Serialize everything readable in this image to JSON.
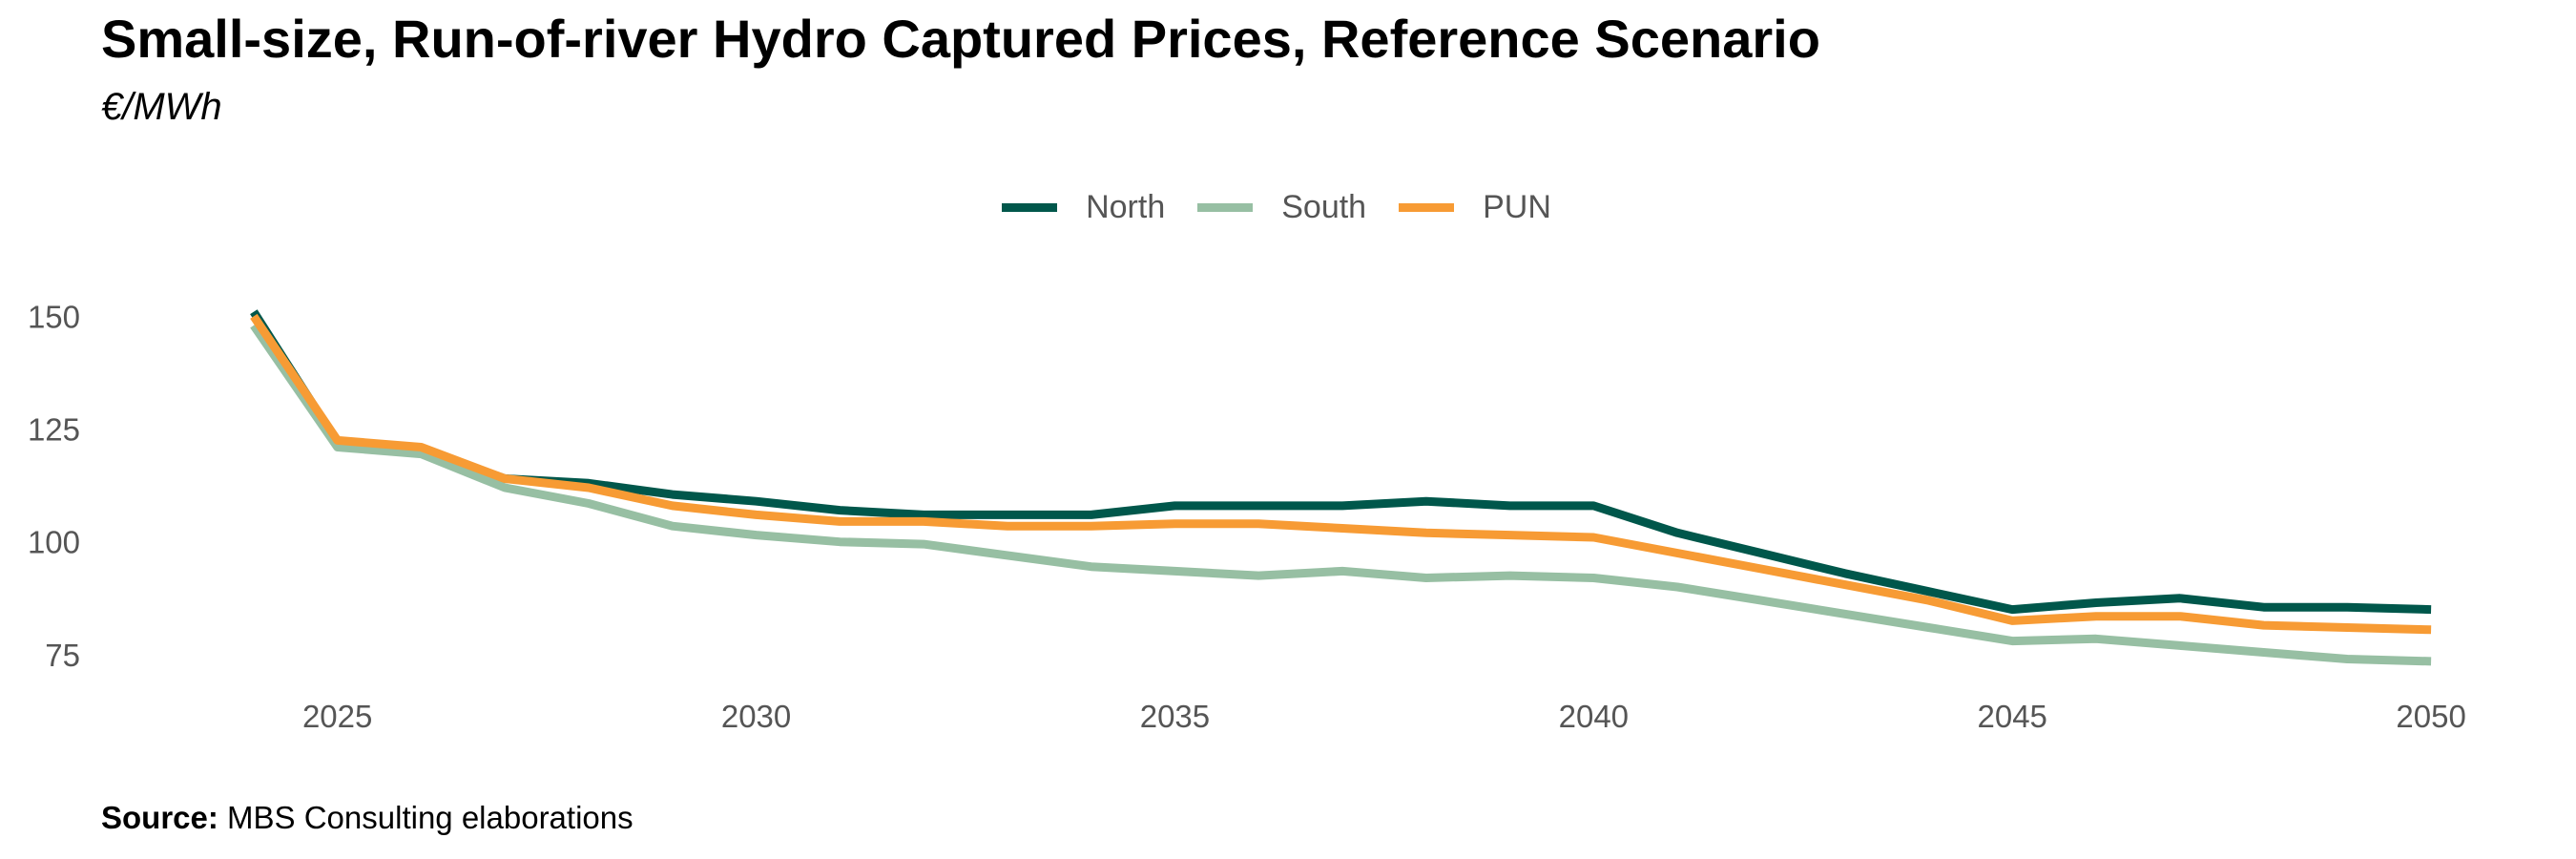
{
  "chart_data": {
    "type": "line",
    "title": "Small-size, Run-of-river Hydro Captured Prices, Reference Scenario",
    "subtitle": "€/MWh",
    "xlabel": "",
    "ylabel": "",
    "x": [
      2024,
      2025,
      2026,
      2027,
      2028,
      2029,
      2030,
      2031,
      2032,
      2033,
      2034,
      2035,
      2036,
      2037,
      2038,
      2039,
      2040,
      2041,
      2042,
      2043,
      2044,
      2045,
      2046,
      2047,
      2048,
      2049,
      2050
    ],
    "xticks": [
      "2025",
      "2030",
      "2035",
      "2040",
      "2045",
      "2050"
    ],
    "xtick_values": [
      2025,
      2030,
      2035,
      2040,
      2045,
      2050
    ],
    "yticks": [
      "75",
      "100",
      "125",
      "150"
    ],
    "ytick_values": [
      75,
      100,
      125,
      150
    ],
    "xlim": [
      2023.5,
      2050.5
    ],
    "ylim": [
      72,
      152
    ],
    "grid": false,
    "legend_position": "top",
    "series": [
      {
        "name": "North",
        "color": "#00574B",
        "values": [
          151,
          122,
          120.5,
          114,
          113,
          110.5,
          109,
          107,
          106,
          106,
          106,
          108,
          108,
          108,
          109,
          108,
          108,
          102,
          97.5,
          93,
          89,
          85,
          86.5,
          87.5,
          85.5,
          85.5,
          85
        ]
      },
      {
        "name": "South",
        "color": "#97BFA3",
        "values": [
          148,
          121,
          119.5,
          112,
          108.5,
          103.5,
          101.5,
          100,
          99.5,
          97,
          94.5,
          93.5,
          92.5,
          93.5,
          92,
          92.5,
          92,
          90,
          87,
          84,
          81,
          78,
          78.5,
          77,
          75.5,
          74,
          73.5
        ]
      },
      {
        "name": "PUN",
        "color": "#F79B34",
        "values": [
          150,
          122.5,
          121,
          114,
          112,
          108,
          106,
          104.5,
          104.5,
          103.5,
          103.5,
          104,
          104,
          103,
          102,
          101.5,
          101,
          97.5,
          94,
          90.5,
          87,
          82.5,
          83.5,
          83.5,
          81.5,
          81,
          80.5
        ]
      }
    ]
  },
  "source": {
    "label": "Source:",
    "text": "MBS Consulting elaborations"
  }
}
